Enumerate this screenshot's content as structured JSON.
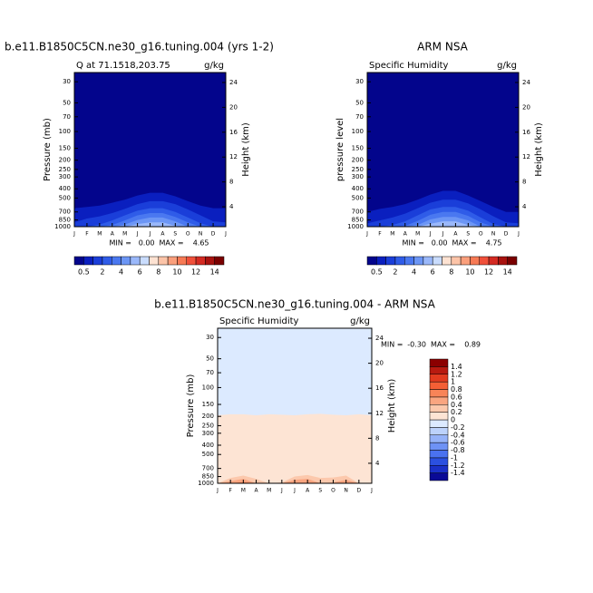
{
  "chart_data": [
    {
      "type": "contour",
      "title": "b.e11.B1850C5CN.ne30_g16.tuning.004 (yrs 1-2)",
      "subtitle": "Q at 71.1518,203.75",
      "units": "g/kg",
      "ylabel": "Pressure (mb)",
      "y2label": "Height (km)",
      "categories": [
        "J",
        "F",
        "M",
        "A",
        "M",
        "J",
        "J",
        "A",
        "S",
        "O",
        "N",
        "D",
        "J"
      ],
      "ylog": true,
      "ylim": [
        1000,
        24
      ],
      "yticks": [
        30,
        50,
        70,
        100,
        150,
        200,
        250,
        300,
        400,
        500,
        700,
        850,
        1000
      ],
      "y2lim": [
        0.8,
        25.6
      ],
      "y2ticks": [
        4,
        8,
        12,
        16,
        20,
        24
      ],
      "colorbar_levels": [
        0.5,
        1,
        2,
        3,
        4,
        5,
        6,
        7,
        8,
        9,
        10,
        11,
        12,
        13,
        14
      ],
      "colorbar_ticks": [
        0.5,
        2,
        4,
        6,
        8,
        10,
        12,
        14
      ],
      "colors": [
        "#03058c",
        "#0a1fbf",
        "#1a3ed9",
        "#2f5ce8",
        "#4a78f0",
        "#6c96f5",
        "#9ab8fa",
        "#c9dcfd",
        "#fde2d2",
        "#fcc4a8",
        "#fa9f7c",
        "#f77a55",
        "#f0503a",
        "#d42a22",
        "#a8120f",
        "#7a0000"
      ],
      "contour_tops": [
        [
          640,
          620,
          600,
          560,
          520,
          470,
          440,
          440,
          480,
          540,
          600,
          640,
          640
        ],
        [
          900,
          820,
          780,
          720,
          650,
          580,
          540,
          540,
          580,
          660,
          760,
          880,
          900
        ],
        [
          1000,
          1000,
          950,
          860,
          760,
          680,
          640,
          640,
          700,
          800,
          920,
          1000,
          1000
        ],
        [
          1000,
          1000,
          1000,
          960,
          860,
          760,
          720,
          720,
          790,
          900,
          1000,
          1000,
          1000
        ],
        [
          1000,
          1000,
          1000,
          1000,
          950,
          850,
          800,
          800,
          880,
          1000,
          1000,
          1000,
          1000
        ],
        [
          1000,
          1000,
          1000,
          1000,
          1000,
          940,
          900,
          900,
          980,
          1000,
          1000,
          1000,
          1000
        ]
      ],
      "min_label": "MIN =",
      "min": {
        "value": 0,
        "label": "0.00"
      },
      "max_label": "MAX =",
      "max": 4.65
    },
    {
      "type": "contour",
      "title": "ARM NSA",
      "subtitle": "Specific Humidity",
      "units": "g/kg",
      "ylabel": "pressure level",
      "y2label": "Height (km)",
      "categories": [
        "J",
        "F",
        "M",
        "A",
        "M",
        "J",
        "J",
        "A",
        "S",
        "O",
        "N",
        "D",
        "J"
      ],
      "ylog": true,
      "ylim": [
        1000,
        24
      ],
      "yticks": [
        30,
        50,
        70,
        100,
        150,
        200,
        250,
        300,
        400,
        500,
        700,
        850,
        1000
      ],
      "y2lim": [
        0.8,
        25.6
      ],
      "y2ticks": [
        4,
        8,
        12,
        16,
        20,
        24
      ],
      "colorbar_levels": [
        0.5,
        1,
        2,
        3,
        4,
        5,
        6,
        7,
        8,
        9,
        10,
        11,
        12,
        13,
        14
      ],
      "colorbar_ticks": [
        0.5,
        2,
        4,
        6,
        8,
        10,
        12,
        14
      ],
      "colors": [
        "#03058c",
        "#0a1fbf",
        "#1a3ed9",
        "#2f5ce8",
        "#4a78f0",
        "#6c96f5",
        "#9ab8fa",
        "#c9dcfd",
        "#fde2d2",
        "#fcc4a8",
        "#fa9f7c",
        "#f77a55",
        "#f0503a",
        "#d42a22",
        "#a8120f",
        "#7a0000"
      ],
      "contour_tops": [
        [
          700,
          650,
          620,
          580,
          520,
          460,
          420,
          420,
          470,
          540,
          620,
          700,
          700
        ],
        [
          920,
          860,
          800,
          730,
          640,
          560,
          520,
          520,
          570,
          660,
          780,
          900,
          920
        ],
        [
          1000,
          1000,
          960,
          880,
          760,
          660,
          620,
          620,
          680,
          800,
          940,
          1000,
          1000
        ],
        [
          1000,
          1000,
          1000,
          980,
          870,
          750,
          700,
          700,
          770,
          900,
          1000,
          1000,
          1000
        ],
        [
          1000,
          1000,
          1000,
          1000,
          960,
          840,
          790,
          790,
          860,
          1000,
          1000,
          1000,
          1000
        ],
        [
          1000,
          1000,
          1000,
          1000,
          1000,
          930,
          880,
          880,
          960,
          1000,
          1000,
          1000,
          1000
        ]
      ],
      "min_label": "MIN =",
      "min": {
        "value": 0,
        "label": "0.00"
      },
      "max_label": "MAX =",
      "max": 4.75
    },
    {
      "type": "contour",
      "title": "b.e11.B1850C5CN.ne30_g16.tuning.004 - ARM NSA",
      "subtitle": "Specific Humidity",
      "units": "g/kg",
      "ylabel": "Pressure (mb)",
      "y2label": "Height (km)",
      "categories": [
        "J",
        "F",
        "M",
        "A",
        "M",
        "J",
        "J",
        "A",
        "S",
        "O",
        "N",
        "D",
        "J"
      ],
      "ylog": true,
      "ylim": [
        1000,
        24
      ],
      "yticks": [
        30,
        50,
        70,
        100,
        150,
        200,
        250,
        300,
        400,
        500,
        700,
        850,
        1000
      ],
      "y2lim": [
        0.8,
        25.6
      ],
      "y2ticks": [
        4,
        8,
        12,
        16,
        20,
        24
      ],
      "colorbar_levels": [
        -1.4,
        -1.2,
        -1,
        -0.8,
        -0.6,
        -0.4,
        -0.2,
        0,
        0.2,
        0.4,
        0.6,
        0.8,
        1,
        1.2,
        1.4
      ],
      "colors": [
        "#0a0a96",
        "#1a30c8",
        "#2b50e0",
        "#4a72f0",
        "#6e92f5",
        "#95b2f8",
        "#bcd2fb",
        "#dceaff",
        "#fde4d4",
        "#fcc8ac",
        "#faa580",
        "#f88458",
        "#f45f35",
        "#e23b1f",
        "#b81a10",
        "#8b0000"
      ],
      "contour_tops": [
        [
          24,
          24,
          24,
          24,
          24,
          24,
          24,
          24,
          24,
          24,
          24,
          24,
          24
        ],
        [
          24,
          24,
          24,
          24,
          24,
          24,
          24,
          24,
          24,
          24,
          24,
          24,
          24
        ],
        [
          24,
          24,
          24,
          24,
          24,
          24,
          24,
          24,
          24,
          24,
          24,
          24,
          24
        ],
        [
          24,
          24,
          24,
          24,
          24,
          24,
          24,
          24,
          24,
          24,
          24,
          24,
          24
        ],
        [
          24,
          24,
          24,
          24,
          24,
          24,
          24,
          24,
          24,
          24,
          24,
          24,
          24
        ],
        [
          24,
          24,
          24,
          24,
          24,
          24,
          24,
          24,
          24,
          24,
          24,
          24,
          24
        ],
        [
          24,
          24,
          24,
          24,
          24,
          24,
          24,
          24,
          24,
          24,
          24,
          24,
          24
        ],
        [
          195,
          190,
          190,
          195,
          190,
          192,
          195,
          190,
          188,
          192,
          195,
          190,
          195
        ],
        [
          1000,
          880,
          830,
          900,
          1000,
          980,
          850,
          820,
          880,
          870,
          830,
          1000,
          1000
        ],
        [
          1000,
          950,
          900,
          1000,
          1000,
          1000,
          920,
          900,
          1000,
          980,
          920,
          1000,
          1000
        ],
        [
          1000,
          1000,
          970,
          1000,
          1000,
          1000,
          1000,
          1000,
          1000,
          1000,
          1000,
          1000,
          1000
        ]
      ],
      "min_label": "MIN =",
      "min": {
        "value": -0.3,
        "label": "-0.30"
      },
      "max_label": "MAX =",
      "max": 0.89
    }
  ]
}
